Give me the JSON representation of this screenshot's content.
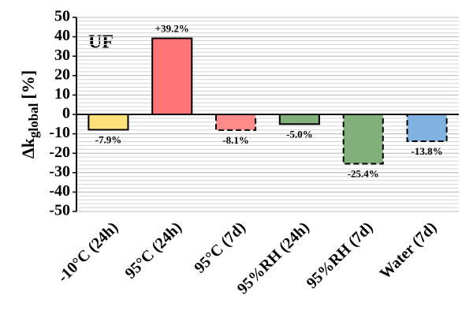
{
  "chart_data": {
    "type": "bar",
    "annotation": "UF",
    "ylabel": "Δk",
    "ylabel_subscript": "global",
    "ylabel_suffix": "[%]",
    "categories": [
      "-10°C (24h)",
      "95°C (24h)",
      "95°C (7d)",
      "95%RH (24h)",
      "95%RH (7d)",
      "Water (7d)"
    ],
    "values": [
      -7.9,
      39.2,
      -8.1,
      -5.0,
      -25.4,
      -13.8
    ],
    "value_labels": [
      "-7.9%",
      "+39.2%",
      "-8.1%",
      "-5.0%",
      "-25.4%",
      "-13.8%"
    ],
    "colors": [
      "#ffe07a",
      "#ff7474",
      "#ff8a8a",
      "#82b07a",
      "#82b07a",
      "#7fb2e0"
    ],
    "border_styles": [
      "solid",
      "solid",
      "dashed",
      "solid",
      "dashed",
      "dashed"
    ],
    "ylim": [
      -50,
      50
    ],
    "yticks": [
      -50,
      -40,
      -30,
      -20,
      -10,
      0,
      10,
      20,
      30,
      40,
      50
    ],
    "grid": true,
    "minor_grid_step": 2
  }
}
